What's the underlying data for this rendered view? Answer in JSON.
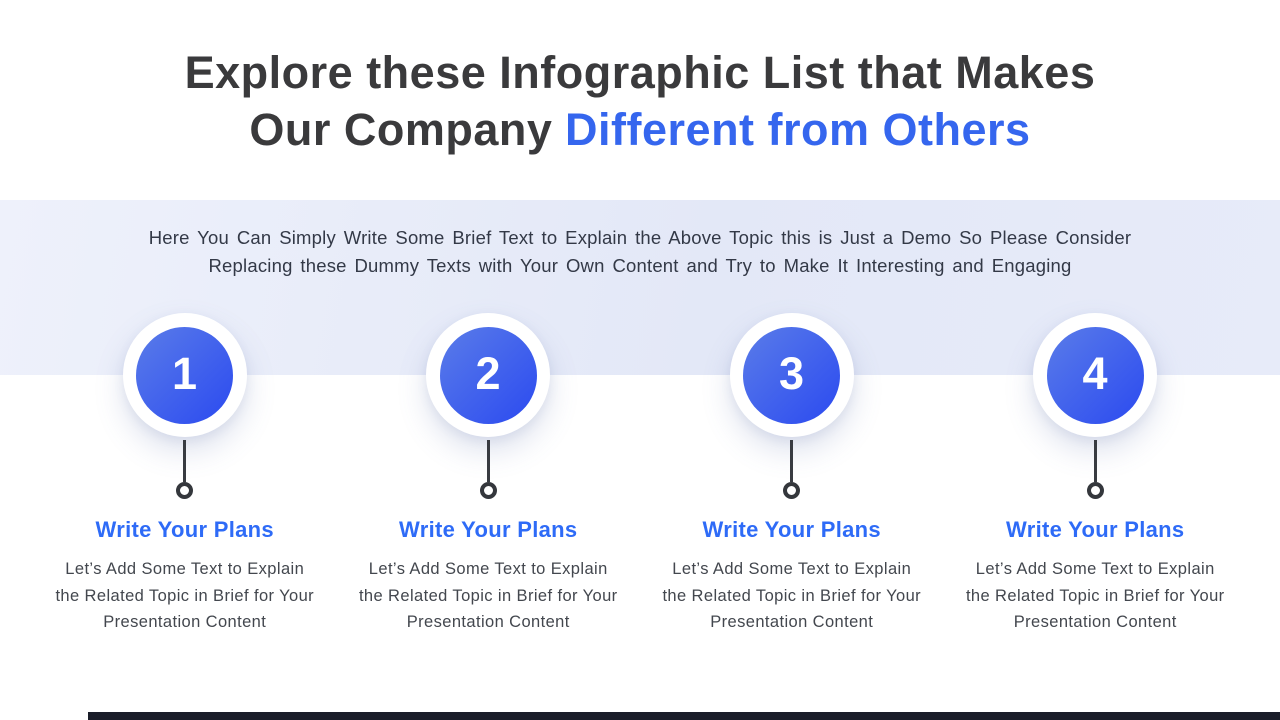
{
  "slide": {
    "title": {
      "line1": "Explore these Infographic List that Makes",
      "line2_dark": "Our Company",
      "line2_accent": "Different from Others"
    },
    "subtitle": "Here You Can Simply Write Some Brief Text to Explain the Above Topic this is Just a Demo So Please Consider\nReplacing these Dummy Texts with Your Own Content and Try to Make It Interesting and Engaging",
    "steps": [
      {
        "number": "1",
        "heading": "Write Your Plans",
        "body": "Let’s Add Some Text to Explain\nthe Related Topic in Brief for Your\nPresentation Content"
      },
      {
        "number": "2",
        "heading": "Write Your Plans",
        "body": "Let’s Add Some Text to Explain\nthe Related Topic in Brief for Your\nPresentation Content"
      },
      {
        "number": "3",
        "heading": "Write Your Plans",
        "body": "Let’s Add Some Text to Explain\nthe Related Topic in Brief for Your\nPresentation Content"
      },
      {
        "number": "4",
        "heading": "Write Your Plans",
        "body": "Let’s Add Some Text to Explain\nthe Related Topic in Brief for Your\nPresentation Content"
      }
    ],
    "colors": {
      "title_dark": "#3a3a3c",
      "accent_blue": "#3566ee",
      "heading_blue": "#2e6bf7",
      "band_background": "#e6eaf8",
      "circle_gradient_start": "#5a7ce9",
      "circle_gradient_end": "#2b4af0",
      "connector_dark": "#383b41",
      "body_text": "#43474e",
      "bottom_bar": "#1a1d29"
    }
  }
}
